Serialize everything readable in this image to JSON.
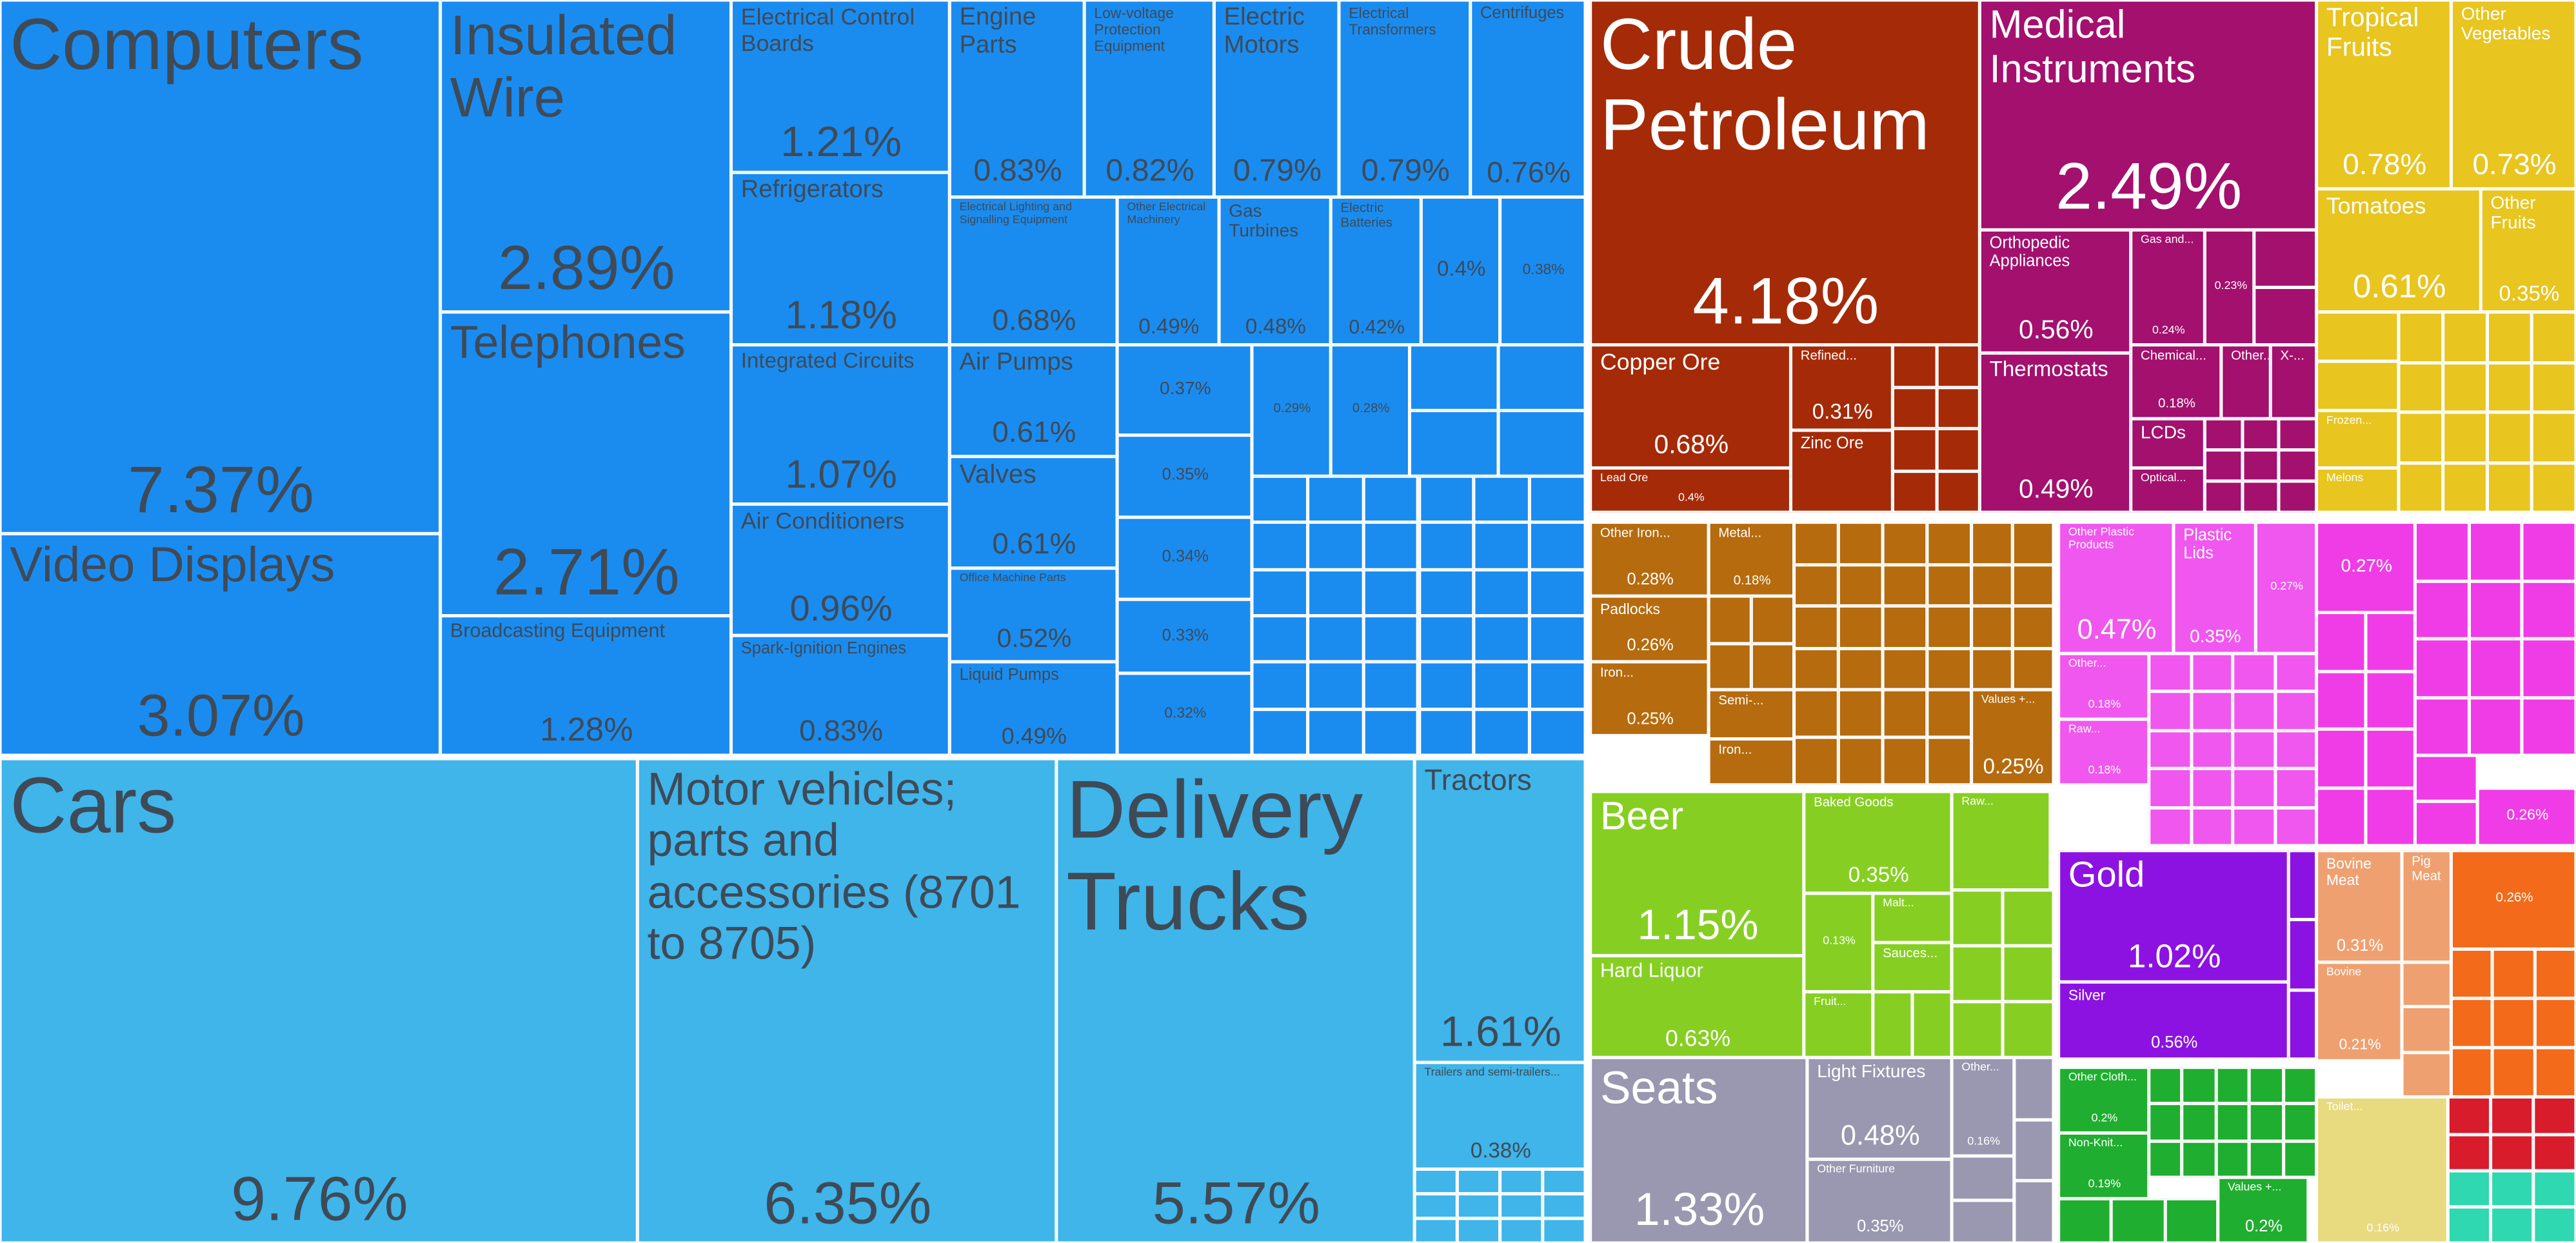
{
  "chart_data": {
    "type": "treemap",
    "categories": [
      "Computers",
      "Video Displays",
      "Insulated Wire",
      "Telephones",
      "Broadcasting Equipment",
      "Electrical Control Boards",
      "Refrigerators",
      "Integrated Circuits",
      "Air Conditioners",
      "Spark-Ignition Engines",
      "Engine Parts",
      "Low-voltage Protection Equipment",
      "Electric Motors",
      "Electrical Transformers",
      "Centrifuges",
      "Electrical Lighting and Signalling Equipment",
      "Air Pumps",
      "Valves",
      "Office Machine Parts",
      "Liquid Pumps",
      "Other Electrical Machinery",
      "Gas Turbines",
      "Electric Batteries",
      null,
      null,
      null,
      null,
      null,
      null,
      null,
      null,
      null,
      "Cars",
      "Motor vehicles; parts and accessories (8701 to 8705)",
      "Delivery Trucks",
      "Tractors",
      "Trailers and semi-trailers...",
      "Crude Petroleum",
      "Copper Ore",
      "Refined...",
      "Zinc Ore",
      "Lead Ore",
      "Medical Instruments",
      "Orthopedic Appliances",
      "Thermostats",
      "Gas and...",
      null,
      "Chemical...",
      "Other...",
      "X-...",
      "LCDs",
      "Optical...",
      "Tropical Fruits",
      "Other Vegetables",
      "Tomatoes",
      "Other Fruits",
      "Frozen...",
      "Melons",
      "Other Iron...",
      "Metal...",
      "Padlocks",
      "Iron...",
      "Semi-...",
      "Iron...",
      "Values +...",
      "Other Plastic Products",
      "Plastic Lids",
      null,
      "Other...",
      "Raw...",
      null,
      null,
      "Beer",
      "Hard Liquor",
      "Baked Goods",
      "Raw...",
      null,
      "Malt...",
      "Sauces...",
      "Fruit...",
      "Seats",
      "Light Fixtures",
      "Other...",
      "Other Furniture",
      "Gold",
      "Silver",
      "Other Cloth...",
      "Non-Knit...",
      "Values +...",
      "Bovine Meat",
      "Pig Meat",
      "Bovine",
      null,
      "Toilet..."
    ],
    "values": [
      7.37,
      3.07,
      2.89,
      2.71,
      1.28,
      1.21,
      1.18,
      1.07,
      0.96,
      0.83,
      0.83,
      0.82,
      0.79,
      0.79,
      0.76,
      0.68,
      0.61,
      0.61,
      0.52,
      0.49,
      0.49,
      0.48,
      0.42,
      0.4,
      0.38,
      0.37,
      0.35,
      0.34,
      0.33,
      0.32,
      0.29,
      0.28,
      9.76,
      6.35,
      5.57,
      1.61,
      0.38,
      4.18,
      0.68,
      0.31,
      0.26,
      0.4,
      2.49,
      0.56,
      0.49,
      0.24,
      0.23,
      0.18,
      0.14,
      0.13,
      0.12,
      0.11,
      0.78,
      0.73,
      0.61,
      0.35,
      0.12,
      0.1,
      0.28,
      0.18,
      0.26,
      0.25,
      0.11,
      0.1,
      0.25,
      0.47,
      0.35,
      0.27,
      0.18,
      0.18,
      0.27,
      0.26,
      1.15,
      0.63,
      0.35,
      0.15,
      0.13,
      0.12,
      0.12,
      0.1,
      1.33,
      0.48,
      0.16,
      0.35,
      1.02,
      0.56,
      0.2,
      0.19,
      0.2,
      0.31,
      0.14,
      0.21,
      0.26,
      0.16
    ],
    "value_labels": [
      "7.37%",
      "3.07%",
      "2.89%",
      "2.71%",
      "1.28%",
      "1.21%",
      "1.18%",
      "1.07%",
      "0.96%",
      "0.83%",
      "0.83%",
      "0.82%",
      "0.79%",
      "0.79%",
      "0.76%",
      "0.68%",
      "0.61%",
      "0.61%",
      "0.52%",
      "0.49%",
      "0.49%",
      "0.48%",
      "0.42%",
      "0.4%",
      "0.38%",
      "0.37%",
      "0.35%",
      "0.34%",
      "0.33%",
      "0.32%",
      "0.29%",
      "0.28%",
      "9.76%",
      "6.35%",
      "5.57%",
      "1.61%",
      "0.38%",
      "4.18%",
      "0.68%",
      "0.31%",
      null,
      "0.4%",
      "2.49%",
      "0.56%",
      "0.49%",
      "0.24%",
      "0.23%",
      "0.18%",
      null,
      null,
      null,
      null,
      "0.78%",
      "0.73%",
      "0.61%",
      "0.35%",
      null,
      null,
      "0.28%",
      "0.18%",
      "0.26%",
      "0.25%",
      null,
      null,
      "0.25%",
      "0.47%",
      "0.35%",
      "0.27%",
      "0.18%",
      "0.18%",
      "0.27%",
      "0.26%",
      "1.15%",
      "0.63%",
      "0.35%",
      null,
      "0.13%",
      null,
      null,
      null,
      "1.33%",
      "0.48%",
      "0.16%",
      "0.35%",
      "1.02%",
      "0.56%",
      "0.2%",
      "0.19%",
      "0.2%",
      "0.31%",
      null,
      "0.21%",
      "0.26%",
      "0.16%"
    ],
    "colors": [
      "#1a8cf0",
      "#1a8cf0",
      "#1a8cf0",
      "#1a8cf0",
      "#1a8cf0",
      "#1a8cf0",
      "#1a8cf0",
      "#1a8cf0",
      "#1a8cf0",
      "#1a8cf0",
      "#1a8cf0",
      "#1a8cf0",
      "#1a8cf0",
      "#1a8cf0",
      "#1a8cf0",
      "#1a8cf0",
      "#1a8cf0",
      "#1a8cf0",
      "#1a8cf0",
      "#1a8cf0",
      "#1a8cf0",
      "#1a8cf0",
      "#1a8cf0",
      "#1a8cf0",
      "#1a8cf0",
      "#1a8cf0",
      "#1a8cf0",
      "#1a8cf0",
      "#1a8cf0",
      "#1a8cf0",
      "#1a8cf0",
      "#1a8cf0",
      "#3fb5ea",
      "#3fb5ea",
      "#3fb5ea",
      "#3fb5ea",
      "#3fb5ea",
      "#a52a08",
      "#a52a08",
      "#a52a08",
      "#a52a08",
      "#a52a08",
      "#a3106e",
      "#a3106e",
      "#a3106e",
      "#a3106e",
      "#a3106e",
      "#a3106e",
      "#a3106e",
      "#a3106e",
      "#a3106e",
      "#a3106e",
      "#e8c51f",
      "#e8c51f",
      "#e8c51f",
      "#e8c51f",
      "#e8c51f",
      "#e8c51f",
      "#b56b0e",
      "#b56b0e",
      "#b56b0e",
      "#b56b0e",
      "#b56b0e",
      "#b56b0e",
      "#b56b0e",
      "#f057ee",
      "#f057ee",
      "#f057ee",
      "#f057ee",
      "#f057ee",
      "#f03ce6",
      "#f03ce6",
      "#86cf22",
      "#86cf22",
      "#86cf22",
      "#86cf22",
      "#86cf22",
      "#86cf22",
      "#86cf22",
      "#86cf22",
      "#9a98b0",
      "#9a98b0",
      "#9a98b0",
      "#9a98b0",
      "#8c12e2",
      "#8c12e2",
      "#1fae2f",
      "#1fae2f",
      "#1fae2f",
      "#efa071",
      "#efa071",
      "#efa071",
      "#f26a1a",
      "#e8da7e"
    ]
  }
}
